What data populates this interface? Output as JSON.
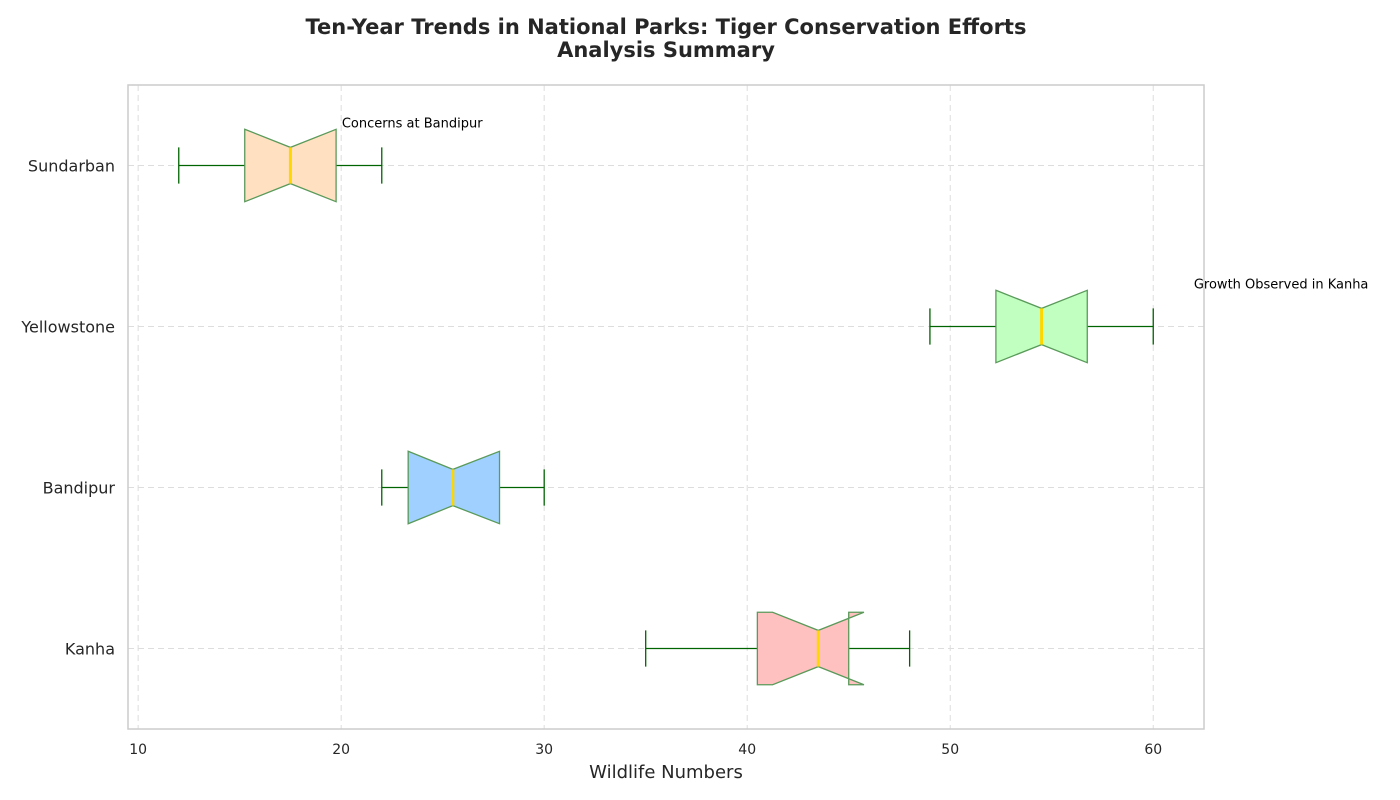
{
  "chart_data": {
    "type": "boxplot",
    "orientation": "horizontal",
    "notched": true,
    "title_lines": [
      "Ten-Year Trends in National Parks: Tiger Conservation Efforts",
      "Analysis Summary"
    ],
    "xlabel": "Wildlife Numbers",
    "ylabel": "",
    "xlim": [
      9.5,
      62.5
    ],
    "xticks": [
      10,
      20,
      30,
      40,
      50,
      60
    ],
    "grid": true,
    "categories": [
      "Kanha",
      "Bandipur",
      "Yellowstone",
      "Sundarban"
    ],
    "boxes": [
      {
        "name": "Kanha",
        "whisker_low": 35,
        "q1": 40.5,
        "median": 43.5,
        "q3": 45,
        "whisker_high": 48,
        "notch_low": 41.25,
        "notch_high": 45.75,
        "color": "#ffc0c0"
      },
      {
        "name": "Bandipur",
        "whisker_low": 22,
        "q1": 23.3,
        "median": 25.5,
        "q3": 27.8,
        "whisker_high": 30,
        "notch_low": 23.3,
        "notch_high": 27.8,
        "color": "#a0d0ff"
      },
      {
        "name": "Yellowstone",
        "whisker_low": 49,
        "q1": 52.25,
        "median": 54.5,
        "q3": 56.75,
        "whisker_high": 60,
        "notch_low": 52.25,
        "notch_high": 56.75,
        "color": "#c0ffc0"
      },
      {
        "name": "Sundarban",
        "whisker_low": 12,
        "q1": 15.25,
        "median": 17.5,
        "q3": 19.75,
        "whisker_high": 22,
        "notch_low": 15.25,
        "notch_high": 19.75,
        "color": "#ffe0c0"
      }
    ],
    "box_edge_color": "#5a9a5a",
    "whisker_color": "#006400",
    "median_color": "#ffd700",
    "annotations": [
      {
        "text": "Concerns at Bandipur",
        "x": 23.5,
        "category": "Sundarban",
        "anchor": "middle"
      },
      {
        "text": "Growth Observed in Kanha",
        "x": 62,
        "category": "Yellowstone",
        "anchor": "start"
      }
    ]
  }
}
